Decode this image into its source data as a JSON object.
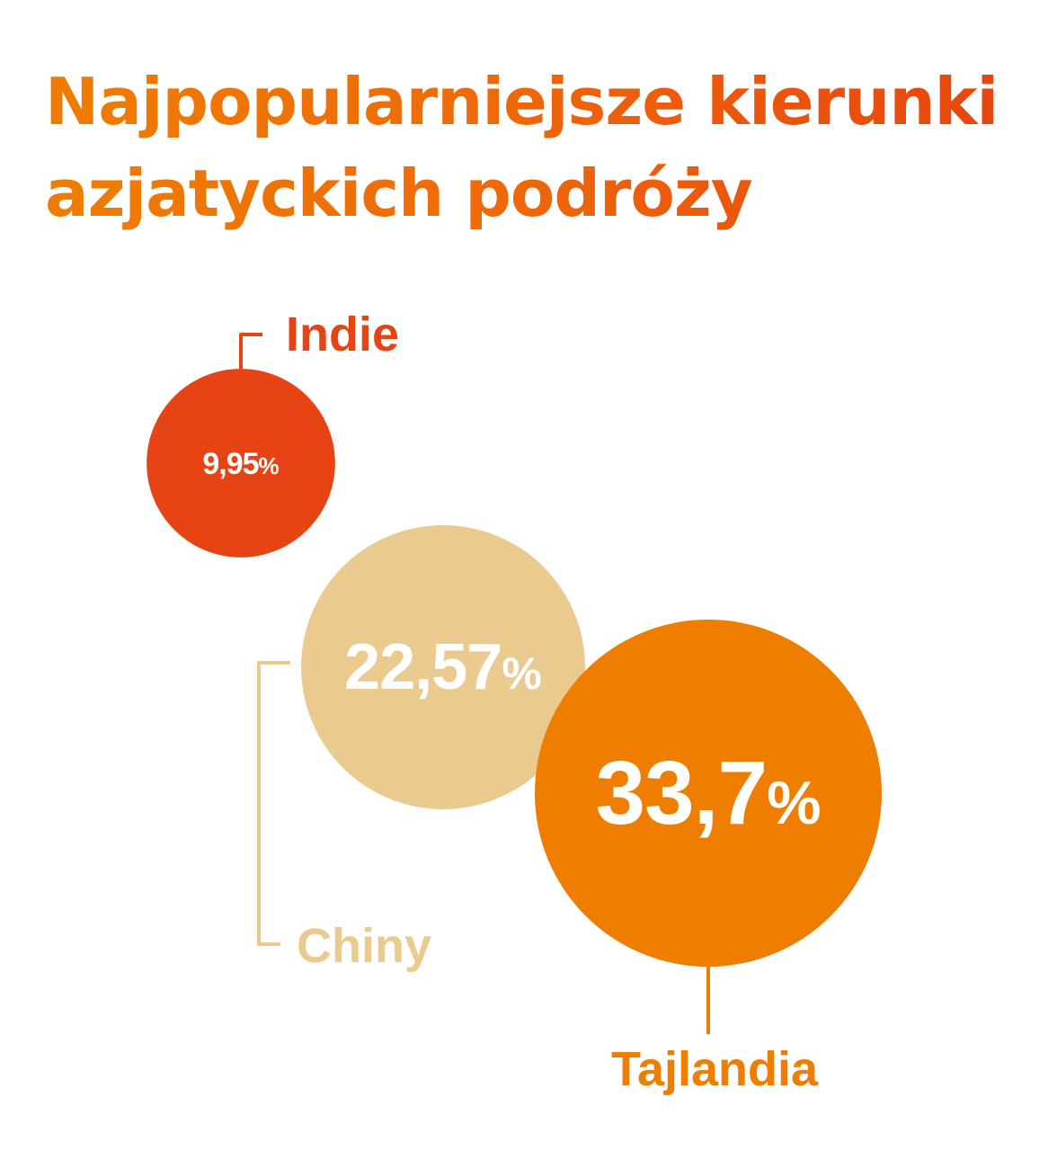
{
  "title_lines": [
    "Najpopularniejsze kierunki",
    "azjatyckich podróży"
  ],
  "chart_data": {
    "type": "bubble",
    "title": "Najpopularniejsze kierunki azjatyckich podróży",
    "unit": "%",
    "series": [
      {
        "name": "Indie",
        "value": 9.95,
        "value_label": "9,95",
        "color": "#e64415"
      },
      {
        "name": "Chiny",
        "value": 22.57,
        "value_label": "22,57",
        "color": "#ebca8f"
      },
      {
        "name": "Tajlandia",
        "value": 33.7,
        "value_label": "33,7",
        "color": "#ef7d00"
      }
    ]
  }
}
